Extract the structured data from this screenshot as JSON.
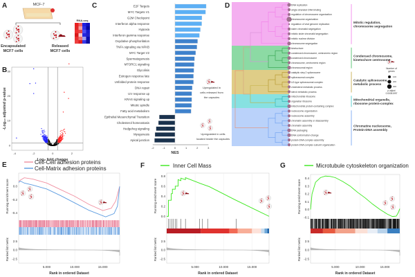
{
  "panel_a": {
    "letter": "A",
    "cell_line": "MCF-7",
    "encapsulated": [
      "Encapsulated",
      "MCF7 cells"
    ],
    "released": [
      "Released",
      "MCF7 cells"
    ],
    "assay": "RNA-seq"
  },
  "panel_b": {
    "letter": "B"
  },
  "panel_c": {
    "letter": "C",
    "annotation_up": [
      "Upregulated in",
      "cells released from",
      "the capsules"
    ],
    "annotation_down": [
      "Upregulated in cells",
      "located inside the capsules"
    ]
  },
  "panel_d": {
    "letter": "D",
    "groups": [
      {
        "label": [
          "Mitotic regulation,",
          "chromosome segregation"
        ],
        "color": "#f3a6ee",
        "line": "#f07ce8",
        "tree": "#f07ce8"
      },
      {
        "label": [
          "Condensed chromosome,",
          "kinetochore centrosome"
        ],
        "color": "#7fd69a",
        "line": "#3cb95a",
        "tree": "#2ca048"
      },
      {
        "label": [
          "Catalytic spliceosome,",
          "metabolic process"
        ],
        "color": "#dcc87a",
        "line": "#c2a23c",
        "tree": "#b19225"
      },
      {
        "label": [
          "Mitochondrial organelle,",
          "ribosome protein-complex"
        ],
        "color": "#7adede",
        "line": "#3cc8c8",
        "tree": "#28b0b0"
      },
      {
        "label": [
          "Chromatine nucleosome,",
          "Protein-DNA assembly"
        ],
        "color": "#b3cdfa",
        "line": "#6a9ef0",
        "tree": "#6a9ef0"
      }
    ],
    "terms": [
      {
        "name": "DNA replication",
        "group": 0,
        "size": 2
      },
      {
        "name": "single-stranded DNA binding",
        "group": 0,
        "size": 1
      },
      {
        "name": "regulation of chromosome organization",
        "group": 0,
        "size": 1
      },
      {
        "name": "chromosome organization",
        "group": 0,
        "size": 3
      },
      {
        "name": "regulation of viral genome replication",
        "group": 0,
        "size": 0
      },
      {
        "name": "sister chromatid segregation",
        "group": 0,
        "size": 1
      },
      {
        "name": "mitotic sister chromatid segregation",
        "group": 0,
        "size": 1
      },
      {
        "name": "mitotic nuclear division",
        "group": 0,
        "size": 1
      },
      {
        "name": "chromosome segregation",
        "group": 0,
        "size": 2
      },
      {
        "name": "kinetochore",
        "group": 1,
        "size": 1
      },
      {
        "name": "condensed chromosome, centromeric region",
        "group": 1,
        "size": 1
      },
      {
        "name": "condensed chromosome",
        "group": 1,
        "size": 2
      },
      {
        "name": "chromosome, centromeric region",
        "group": 1,
        "size": 1
      },
      {
        "name": "chromosomal region",
        "group": 1,
        "size": 2
      },
      {
        "name": "catalytic step 2 spliceosome",
        "group": 2,
        "size": 1
      },
      {
        "name": "spliceosomal complex",
        "group": 2,
        "size": 1
      },
      {
        "name": "U2-type spliceosomal complex",
        "group": 2,
        "size": 1
      },
      {
        "name": "cholesterol metabolic process",
        "group": 2,
        "size": 1
      },
      {
        "name": "sterol metabolic process",
        "group": 2,
        "size": 1
      },
      {
        "name": "mitochondrial ribosome",
        "group": 3,
        "size": 1
      },
      {
        "name": "organellar ribosome",
        "group": 3,
        "size": 1
      },
      {
        "name": "mitochondrial protein-containing complex",
        "group": 3,
        "size": 2
      },
      {
        "name": "nucleosome organization",
        "group": 4,
        "size": 1
      },
      {
        "name": "nucleosome assembly",
        "group": 4,
        "size": 1
      },
      {
        "name": "chromatin assembly or disassembly",
        "group": 4,
        "size": 1
      },
      {
        "name": "chromatin assembly",
        "group": 4,
        "size": 1
      },
      {
        "name": "DNA packaging",
        "group": 4,
        "size": 2
      },
      {
        "name": "DNA conformation change",
        "group": 4,
        "size": 2
      },
      {
        "name": "protein-DNA complex assembly",
        "group": 4,
        "size": 1
      },
      {
        "name": "protein-DNA complex subunit organization",
        "group": 4,
        "size": 1
      }
    ],
    "legend": {
      "size_title": [
        "Number of",
        "genes"
      ],
      "sizes": [
        "100",
        "200",
        "300"
      ],
      "color_title": "p.adjust",
      "color_value": "0.00051997"
    },
    "point_color": "#a07090"
  },
  "panel_e": {
    "letter": "E"
  },
  "panel_f": {
    "letter": "F"
  },
  "panel_g": {
    "letter": "G"
  },
  "chart_data": [
    {
      "id": "B",
      "type": "scatter",
      "title": "",
      "xlabel": "Log₂ fold change",
      "ylabel": "-Log₁₀ adjusted p-value",
      "xlim": [
        -4.3,
        2.9
      ],
      "ylim": [
        -1.8,
        33.5
      ],
      "xticks": [
        -4,
        -2,
        0,
        2
      ],
      "yticks": [
        0,
        10,
        20,
        30
      ],
      "fold_change_threshold": 0.5,
      "pvalue_threshold": 1,
      "colors": {
        "down": "#1f1fff",
        "up": "#ff2020",
        "ns": "#111111"
      },
      "highlight_points": [
        {
          "x": -2.0,
          "y": 31,
          "group": "down"
        },
        {
          "x": -2.4,
          "y": 25,
          "group": "down"
        },
        {
          "x": -1.8,
          "y": 25.2,
          "group": "down"
        },
        {
          "x": -2.0,
          "y": 21,
          "group": "down"
        },
        {
          "x": -3.8,
          "y": 3,
          "group": "down"
        },
        {
          "x": 1.7,
          "y": 33,
          "group": "up"
        },
        {
          "x": 1.2,
          "y": 21.5,
          "group": "up"
        },
        {
          "x": 1.65,
          "y": 19,
          "group": "up"
        },
        {
          "x": 1.1,
          "y": 13.5,
          "group": "up"
        }
      ]
    },
    {
      "id": "C",
      "type": "bar",
      "orientation": "horizontal",
      "xlabel": "NES",
      "xlim": [
        -2,
        3
      ],
      "xticks": [
        -2,
        -1,
        0,
        1,
        2,
        3
      ],
      "categories": [
        "E2F Targets",
        "MYC Targets V1",
        "G2M Checkpoint",
        "Interferon alpha response",
        "Hypoxia",
        "Interferon gamma response",
        "Oxydative phosphorilation",
        "TNFA signaling via NFKB",
        "MYC Target V2",
        "Spermatogenesis",
        "MTORC1 signaling",
        "Glycolisis",
        "Estrogen response late",
        "Unfolded protein response",
        "DNA repair",
        "UV response up",
        "KRAS signaling up",
        "Mitotic spindle",
        "Fatty acid metabolism",
        "Epithelial Mesenchymal Transition",
        "Cholesterol homeostasis",
        "Hedgehog signaling",
        "Myogenesis",
        "Apical junction"
      ],
      "values": [
        2.8,
        2.75,
        2.42,
        2.4,
        2.28,
        2.2,
        2.03,
        1.97,
        1.86,
        1.76,
        1.72,
        1.7,
        1.66,
        1.66,
        1.55,
        1.51,
        1.51,
        1.49,
        1.45,
        -1.41,
        -1.49,
        -1.7,
        -1.8,
        -1.84
      ],
      "colors": {
        "positive_high": "#5db0f5",
        "positive_low": "#3f82cc",
        "negative": "#1a324d"
      }
    },
    {
      "id": "E",
      "type": "line",
      "xlabel": "Rank in ordered Dataset",
      "ylabel": "Running enrichment score",
      "ylabel_bottom": "Ranked list metric",
      "xlim": [
        0,
        18000
      ],
      "xticks": [
        5000,
        10000,
        15000
      ],
      "xtick_labels": [
        "5.000",
        "10.000",
        "15.000"
      ],
      "ylim": [
        -0.5,
        0.2
      ],
      "yticks": [
        0.0,
        -0.2,
        -0.4
      ],
      "ytick_labels": [
        "0.0",
        "-0.2",
        "-0.4"
      ],
      "metric_ticks": [
        "2.5",
        "0.0",
        "-2.5"
      ],
      "series": [
        {
          "name": "Cell-Cell adhesion proteins",
          "color": "#f08fa0",
          "x": [
            0,
            1000,
            2500,
            5000,
            7500,
            10000,
            12500,
            15000,
            16500,
            17300,
            18000
          ],
          "y": [
            0.08,
            0.13,
            0.11,
            0.05,
            -0.05,
            -0.15,
            -0.27,
            -0.365,
            -0.33,
            -0.22,
            0.0
          ]
        },
        {
          "name": "Cell-Matrix adhesion proteins",
          "color": "#5b9be0",
          "x": [
            0,
            300,
            1000,
            2500,
            5000,
            7500,
            10000,
            12500,
            15500,
            17000,
            17600,
            18000
          ],
          "y": [
            0.06,
            0.08,
            0.05,
            0.02,
            -0.04,
            -0.14,
            -0.25,
            -0.36,
            -0.46,
            -0.41,
            -0.3,
            0.0
          ]
        }
      ]
    },
    {
      "id": "F",
      "type": "line",
      "xlabel": "Rank in ordered Dataset",
      "ylabel": "Running enrichment score",
      "ylabel_bottom": "Ranked list metric",
      "xlim": [
        0,
        18000
      ],
      "xticks": [
        5000,
        10000,
        15000
      ],
      "xtick_labels": [
        "5.000",
        "10.000",
        "15.000"
      ],
      "ylim": [
        -0.05,
        0.86
      ],
      "yticks": [
        0.0,
        0.2,
        0.4,
        0.6,
        0.8
      ],
      "ytick_labels": [
        "0.0",
        "0.2",
        "0.4",
        "0.6",
        "0.8"
      ],
      "metric_ticks": [
        "2.5",
        "0.0",
        "-2.5"
      ],
      "hits": [
        300,
        600,
        900,
        1200,
        1500,
        1800,
        2500,
        3300,
        5800,
        6300,
        7200,
        12200
      ],
      "series": [
        {
          "name": "Inner Cell Mass",
          "color": "#39e81a",
          "x": [
            0,
            300,
            300,
            800,
            800,
            1000,
            1000,
            1500,
            1500,
            2000,
            2000,
            2500,
            2500,
            3000,
            3300,
            3300,
            6000,
            7500,
            12000,
            18000
          ],
          "y": [
            0,
            0.0,
            0.32,
            0.32,
            0.45,
            0.45,
            0.54,
            0.54,
            0.6,
            0.6,
            0.73,
            0.71,
            0.76,
            0.74,
            0.73,
            0.77,
            0.65,
            0.59,
            0.33,
            0.0
          ]
        }
      ]
    },
    {
      "id": "G",
      "type": "line",
      "xlabel": "Rank in ordered Dataset",
      "ylabel": "Running enrichment score",
      "ylabel_bottom": "Ranked list metric",
      "xlim": [
        0,
        18000
      ],
      "xticks": [
        5000,
        10000,
        15000
      ],
      "xtick_labels": [
        "5.000",
        "10.000",
        "15.000"
      ],
      "ylim": [
        -0.12,
        0.45
      ],
      "yticks": [
        0.4,
        0.3,
        0.2,
        0.1,
        0.0,
        -0.1
      ],
      "ytick_labels": [
        "0.4",
        "0.3",
        "0.2",
        "0.1",
        "0.0",
        "-0.1"
      ],
      "metric_ticks": [
        "2.5",
        "0.0",
        "-2.5"
      ],
      "series": [
        {
          "name": "Microtubule cytoskeleton organization",
          "color": "#39e81a",
          "x": [
            0,
            300,
            1000,
            2000,
            3000,
            4000,
            5000,
            6500,
            8000,
            9500,
            11000,
            12500,
            14000,
            15500,
            16500,
            17300,
            17700,
            18000
          ],
          "y": [
            0,
            0.2,
            0.35,
            0.41,
            0.43,
            0.425,
            0.41,
            0.36,
            0.3,
            0.22,
            0.15,
            0.07,
            0.0,
            -0.06,
            -0.09,
            -0.085,
            -0.04,
            0.01
          ]
        }
      ]
    }
  ]
}
